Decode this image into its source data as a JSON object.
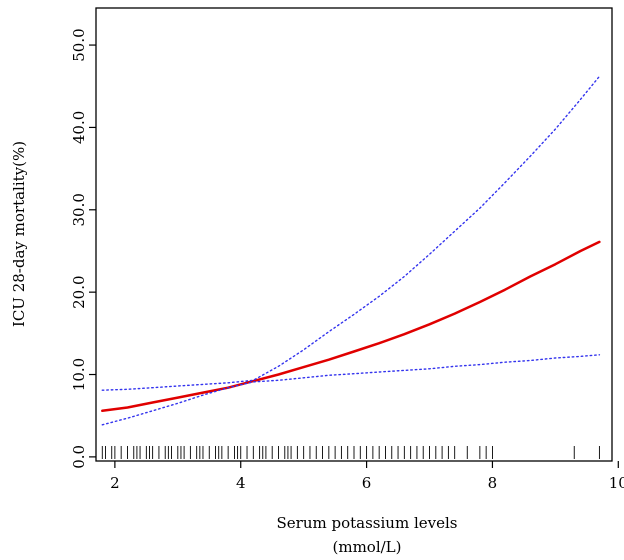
{
  "chart_data": {
    "type": "line",
    "title": "",
    "xlabel_line1": "Serum potassium levels",
    "xlabel_line2": "(mmol/L)",
    "ylabel": "ICU 28-day mortality(%)",
    "xlim": [
      1.7,
      9.9
    ],
    "ylim": [
      -0.5,
      54.5
    ],
    "x_ticks": [
      2,
      4,
      6,
      8,
      10
    ],
    "x_tick_labels": [
      "2",
      "4",
      "6",
      "8",
      "10"
    ],
    "y_ticks": [
      0,
      10,
      20,
      30,
      40,
      50
    ],
    "y_tick_labels": [
      "0.0",
      "10.0",
      "20.0",
      "30.0",
      "40.0",
      "50.0"
    ],
    "grid": false,
    "colors": {
      "estimate": "#e00000",
      "ci": "#3333ee"
    },
    "series": [
      {
        "role": "estimate",
        "style": "solid",
        "x": [
          1.8,
          2.2,
          2.6,
          3.0,
          3.4,
          3.8,
          4.2,
          4.6,
          5.0,
          5.4,
          5.8,
          6.2,
          6.6,
          7.0,
          7.4,
          7.8,
          8.2,
          8.6,
          9.0,
          9.4,
          9.7
        ],
        "y": [
          5.6,
          6.0,
          6.6,
          7.2,
          7.8,
          8.4,
          9.2,
          10.0,
          10.9,
          11.8,
          12.8,
          13.8,
          14.9,
          16.1,
          17.4,
          18.8,
          20.3,
          21.9,
          23.4,
          25.0,
          26.1
        ]
      },
      {
        "role": "ci-upper",
        "style": "dotted",
        "x": [
          1.8,
          2.2,
          2.6,
          3.0,
          3.4,
          3.8,
          4.2,
          4.6,
          5.0,
          5.4,
          5.8,
          6.2,
          6.6,
          7.0,
          7.4,
          7.8,
          8.2,
          8.6,
          9.0,
          9.4,
          9.7
        ],
        "y": [
          8.1,
          8.2,
          8.4,
          8.6,
          8.8,
          9.0,
          9.3,
          11.0,
          13.0,
          15.2,
          17.3,
          19.5,
          21.9,
          24.6,
          27.4,
          30.2,
          33.3,
          36.5,
          39.8,
          43.4,
          46.2
        ]
      },
      {
        "role": "ci-lower",
        "style": "dotted",
        "x": [
          1.8,
          2.2,
          2.6,
          3.0,
          3.4,
          3.8,
          4.2,
          4.6,
          5.0,
          5.4,
          5.8,
          6.2,
          6.6,
          7.0,
          7.4,
          7.8,
          8.2,
          8.6,
          9.0,
          9.4,
          9.7
        ],
        "y": [
          3.9,
          4.7,
          5.6,
          6.5,
          7.5,
          8.4,
          9.1,
          9.3,
          9.6,
          9.9,
          10.1,
          10.3,
          10.5,
          10.7,
          11.0,
          11.2,
          11.5,
          11.7,
          12.0,
          12.2,
          12.4
        ]
      }
    ],
    "rug": [
      1.8,
      1.85,
      1.95,
      2.0,
      2.1,
      2.2,
      2.3,
      2.35,
      2.4,
      2.5,
      2.55,
      2.6,
      2.7,
      2.8,
      2.85,
      2.9,
      3.0,
      3.05,
      3.1,
      3.2,
      3.3,
      3.35,
      3.4,
      3.5,
      3.6,
      3.65,
      3.7,
      3.8,
      3.9,
      3.95,
      4.0,
      4.1,
      4.2,
      4.3,
      4.35,
      4.4,
      4.5,
      4.6,
      4.7,
      4.75,
      4.8,
      4.9,
      5.0,
      5.1,
      5.2,
      5.3,
      5.4,
      5.5,
      5.6,
      5.7,
      5.8,
      5.9,
      6.0,
      6.1,
      6.2,
      6.3,
      6.4,
      6.5,
      6.6,
      6.7,
      6.8,
      6.9,
      7.0,
      7.1,
      7.2,
      7.3,
      7.4,
      7.6,
      7.8,
      7.9,
      8.0,
      9.3,
      9.7
    ]
  }
}
